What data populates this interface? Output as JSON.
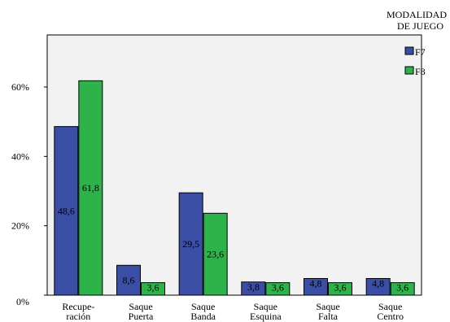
{
  "chart_data": {
    "type": "bar",
    "categories": [
      [
        "Recupe-",
        "ración"
      ],
      [
        "Saque",
        "Puerta"
      ],
      [
        "Saque",
        "Banda"
      ],
      [
        "Saque",
        "Esquina"
      ],
      [
        "Saque",
        "Falta"
      ],
      [
        "Saque",
        "Centro"
      ]
    ],
    "series": [
      {
        "name": "F7",
        "values": [
          48.6,
          8.6,
          29.5,
          3.8,
          4.8,
          4.8
        ],
        "labels": [
          "48,6",
          "8,6",
          "29,5",
          "3,8",
          "4,8",
          "4,8"
        ],
        "color": "#3b4ea6"
      },
      {
        "name": "F8",
        "values": [
          61.8,
          3.6,
          23.6,
          3.6,
          3.6,
          3.6
        ],
        "labels": [
          "61,8",
          "3,6",
          "23,6",
          "3,6",
          "3,6",
          "3,6"
        ],
        "color": "#2db34a"
      }
    ],
    "yticks": [
      {
        "value": 0,
        "label": "0%"
      },
      {
        "value": 20,
        "label": "20%"
      },
      {
        "value": 40,
        "label": "40%"
      },
      {
        "value": 60,
        "label": "60%"
      }
    ],
    "ylim": [
      0,
      75
    ],
    "legend": {
      "title_lines": [
        "MODALIDAD",
        "DE JUEGO"
      ],
      "placement": "top-right"
    },
    "plot_background": "#f2f2f2",
    "grid": false
  }
}
